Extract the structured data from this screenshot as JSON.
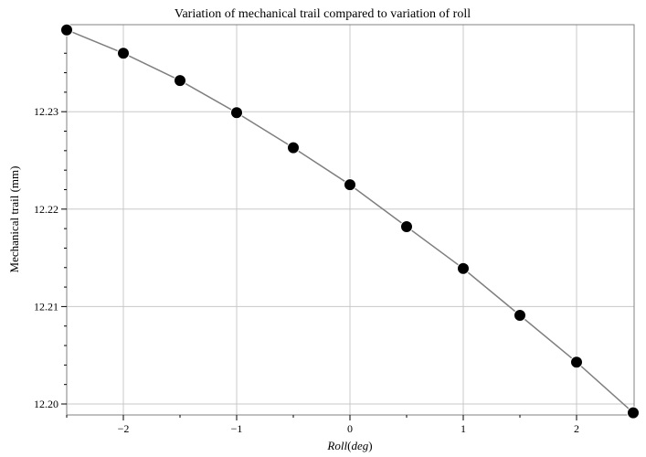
{
  "chart_data": {
    "type": "line",
    "title": "Variation of mechanical trail compared to variation of roll",
    "xlabel_main": "Roll",
    "xlabel_unit": "deg",
    "ylabel": "Mechanical trail (mm)",
    "xlim": [
      -2.5,
      2.5
    ],
    "ylim": [
      12.199,
      12.2385
    ],
    "x_ticks": [
      -2,
      -1,
      0,
      1,
      2
    ],
    "x_tick_labels": [
      "−2",
      "−1",
      "0",
      "1",
      "2"
    ],
    "x_minor_ticks": [
      -2.5,
      -1.5,
      -0.5,
      0.5,
      1.5,
      2.5
    ],
    "y_ticks": [
      12.2,
      12.21,
      12.22,
      12.23
    ],
    "y_tick_labels": [
      "12.20",
      "12.21",
      "12.22",
      "12.23"
    ],
    "grid": true,
    "marker": "filled-circle",
    "series": [
      {
        "x": [
          -2.5,
          -2.0,
          -1.5,
          -1.0,
          -0.5,
          0.0,
          0.5,
          1.0,
          1.5,
          2.0,
          2.5
        ],
        "y": [
          12.2384,
          12.236,
          12.2332,
          12.2299,
          12.2263,
          12.2225,
          12.2182,
          12.2139,
          12.2091,
          12.2043,
          12.1991
        ]
      }
    ]
  }
}
